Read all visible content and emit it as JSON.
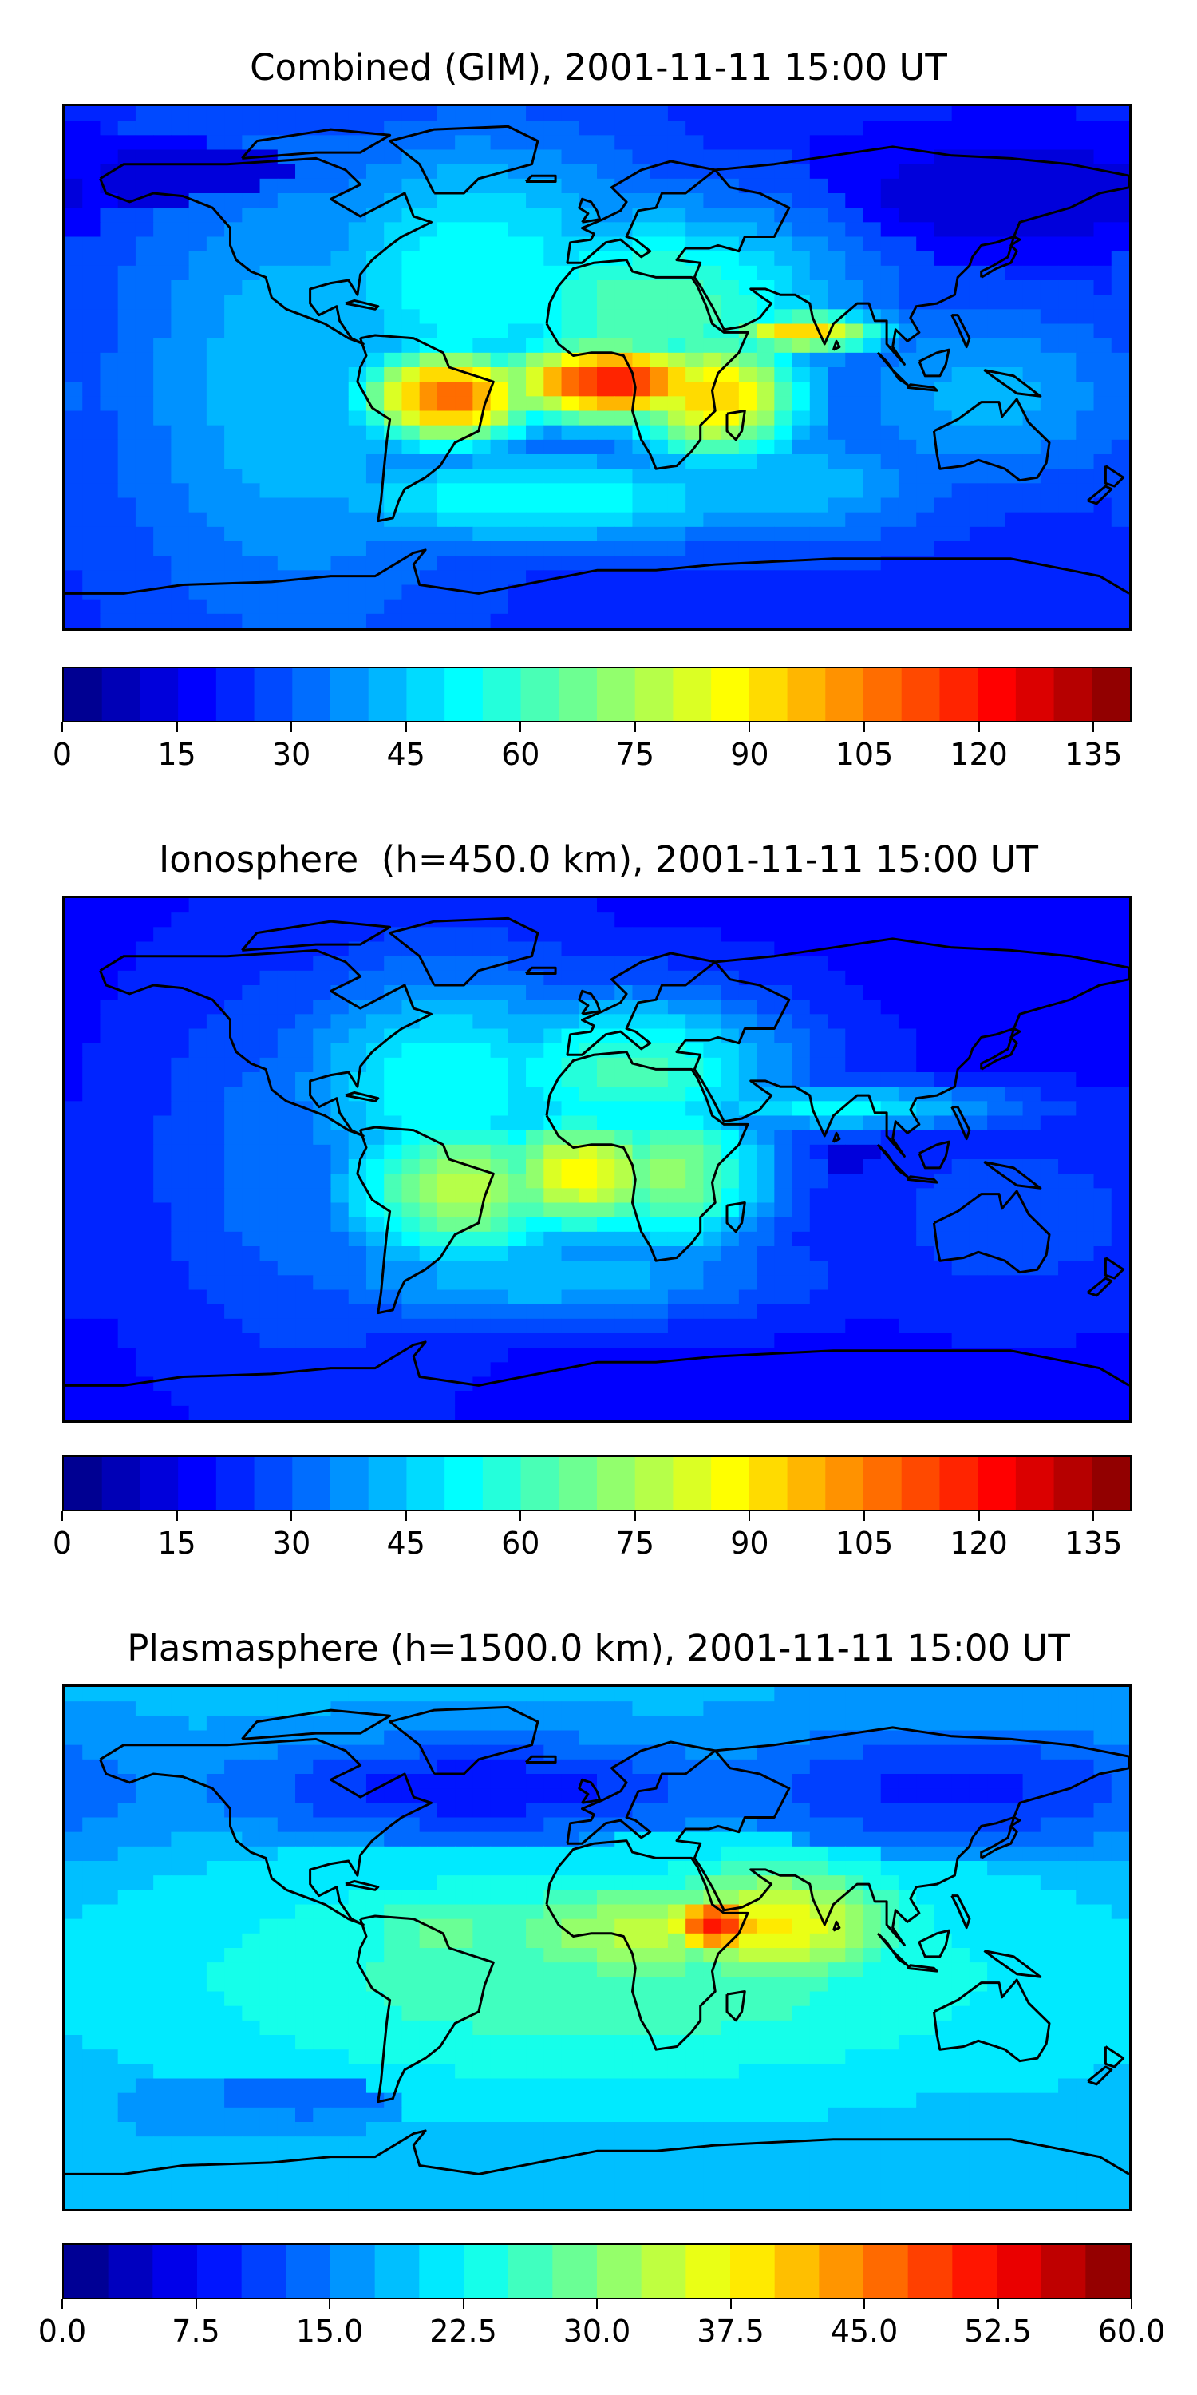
{
  "chart_data": [
    {
      "type": "heatmap",
      "title": "Combined (GIM), 2001-11-11 15:00 UT",
      "xlabel": "",
      "ylabel": "",
      "colorbar": {
        "min": 0,
        "max": 140,
        "levels": 28,
        "ticks": [
          0,
          15,
          30,
          45,
          60,
          75,
          90,
          105,
          120,
          135
        ],
        "tick_labels": [
          "0",
          "15",
          "30",
          "45",
          "60",
          "75",
          "90",
          "105",
          "120",
          "135"
        ]
      },
      "colormap": "jet",
      "background_value": 22,
      "features": [
        {
          "lon": -100,
          "lat": -5,
          "value": 45,
          "slon": 45,
          "slat": 60
        },
        {
          "lon": -40,
          "lat": 30,
          "value": 55,
          "slon": 45,
          "slat": 35
        },
        {
          "lon": -50,
          "lat": -10,
          "value": 110,
          "slon": 22,
          "slat": 12
        },
        {
          "lon": 5,
          "lat": -5,
          "value": 120,
          "slon": 28,
          "slat": 10
        },
        {
          "lon": 40,
          "lat": -10,
          "value": 95,
          "slon": 22,
          "slat": 16
        },
        {
          "lon": 70,
          "lat": 12,
          "value": 95,
          "slon": 20,
          "slat": 5
        },
        {
          "lon": 20,
          "lat": 20,
          "value": 65,
          "slon": 45,
          "slat": 25
        },
        {
          "lon": -20,
          "lat": -45,
          "value": 55,
          "slon": 60,
          "slat": 12
        },
        {
          "lon": 60,
          "lat": -40,
          "value": 45,
          "slon": 40,
          "slat": 15
        },
        {
          "lon": 130,
          "lat": -10,
          "value": 42,
          "slon": 40,
          "slat": 22
        },
        {
          "lon": -120,
          "lat": 65,
          "value": 10,
          "slon": 50,
          "slat": 12
        },
        {
          "lon": 140,
          "lat": 60,
          "value": 10,
          "slon": 45,
          "slat": 15
        }
      ]
    },
    {
      "type": "heatmap",
      "title": "Ionosphere  (h=450.0 km), 2001-11-11 15:00 UT",
      "xlabel": "",
      "ylabel": "",
      "colorbar": {
        "min": 0,
        "max": 140,
        "levels": 28,
        "ticks": [
          0,
          15,
          30,
          45,
          60,
          75,
          90,
          105,
          120,
          135
        ],
        "tick_labels": [
          "0",
          "15",
          "30",
          "45",
          "60",
          "75",
          "90",
          "105",
          "120",
          "135"
        ]
      },
      "colormap": "jet",
      "background_value": 18,
      "features": [
        {
          "lon": -95,
          "lat": 0,
          "value": 35,
          "slon": 40,
          "slat": 50
        },
        {
          "lon": -50,
          "lat": 25,
          "value": 55,
          "slon": 40,
          "slat": 30
        },
        {
          "lon": -45,
          "lat": -10,
          "value": 78,
          "slon": 30,
          "slat": 20
        },
        {
          "lon": -5,
          "lat": -5,
          "value": 88,
          "slon": 25,
          "slat": 16
        },
        {
          "lon": 25,
          "lat": -5,
          "value": 72,
          "slon": 25,
          "slat": 20
        },
        {
          "lon": 10,
          "lat": 30,
          "value": 62,
          "slon": 40,
          "slat": 20
        },
        {
          "lon": 80,
          "lat": 18,
          "value": 52,
          "slon": 45,
          "slat": 6
        },
        {
          "lon": 70,
          "lat": 0,
          "value": 12,
          "slon": 25,
          "slat": 6
        },
        {
          "lon": -20,
          "lat": -40,
          "value": 45,
          "slon": 60,
          "slat": 12
        },
        {
          "lon": 140,
          "lat": -20,
          "value": 28,
          "slon": 40,
          "slat": 25
        }
      ]
    },
    {
      "type": "heatmap",
      "title": "Plasmasphere (h=1500.0 km), 2001-11-11 15:00 UT",
      "xlabel": "",
      "ylabel": "",
      "colorbar": {
        "min": 0,
        "max": 60,
        "levels": 24,
        "ticks": [
          0,
          7.5,
          15,
          22.5,
          30,
          37.5,
          45,
          52.5,
          60
        ],
        "tick_labels": [
          "0.0",
          "7.5",
          "15.0",
          "22.5",
          "30.0",
          "37.5",
          "45.0",
          "52.5",
          "60.0"
        ]
      },
      "colormap": "jet",
      "background_value": 18,
      "features": [
        {
          "lon": 0,
          "lat": -10,
          "value": 27,
          "slon": 110,
          "slat": 30
        },
        {
          "lon": -50,
          "lat": 5,
          "value": 28,
          "slon": 30,
          "slat": 14
        },
        {
          "lon": 15,
          "lat": 5,
          "value": 33,
          "slon": 40,
          "slat": 14
        },
        {
          "lon": 40,
          "lat": 8,
          "value": 52,
          "slon": 12,
          "slat": 7
        },
        {
          "lon": 60,
          "lat": 8,
          "value": 38,
          "slon": 30,
          "slat": 15
        },
        {
          "lon": -40,
          "lat": 55,
          "value": 8,
          "slon": 60,
          "slat": 12
        },
        {
          "lon": 120,
          "lat": 55,
          "value": 9,
          "slon": 55,
          "slat": 15
        },
        {
          "lon": 140,
          "lat": -20,
          "value": 22,
          "slon": 40,
          "slat": 25
        },
        {
          "lon": -100,
          "lat": -50,
          "value": 14,
          "slon": 40,
          "slat": 10
        }
      ]
    }
  ]
}
